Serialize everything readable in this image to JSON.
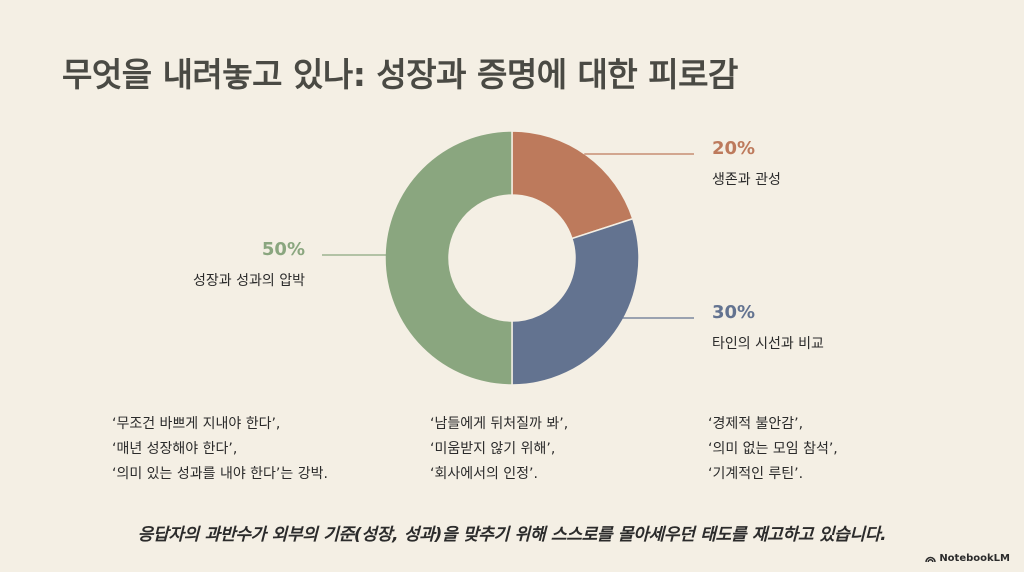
{
  "title": "무엇을 내려놓고 있나: 성장과 증명에 대한 피로감",
  "chart_data": {
    "type": "pie",
    "donut": true,
    "slices": [
      {
        "pct_label": "20%",
        "value": 20,
        "label": "생존과 관성",
        "color": "#bd7a5c"
      },
      {
        "pct_label": "30%",
        "value": 30,
        "label": "타인의 시선과 비교",
        "color": "#637390"
      },
      {
        "pct_label": "50%",
        "value": 50,
        "label": "성장과 성과의 압박",
        "color": "#8aa67f"
      }
    ]
  },
  "notes": [
    {
      "lines": [
        "‘무조건 바쁘게 지내야 한다’,",
        "‘매년 성장해야 한다’,",
        "‘의미 있는 성과를 내야 한다’는 강박."
      ]
    },
    {
      "lines": [
        "‘남들에게 뒤처질까 봐’,",
        "‘미움받지 않기 위해’,",
        "‘회사에서의 인정’."
      ]
    },
    {
      "lines": [
        "‘경제적 불안감’,",
        "‘의미 없는 모임 참석’,",
        "‘기계적인 루틴’."
      ]
    }
  ],
  "summary": "응답자의 과반수가 외부의 기준(성장, 성과)을 맞추기 위해 스스로를 몰아세우던 태도를 재고하고 있습니다.",
  "logo": {
    "text": "NotebookLM",
    "icon": "notebooklm-logo-icon"
  }
}
